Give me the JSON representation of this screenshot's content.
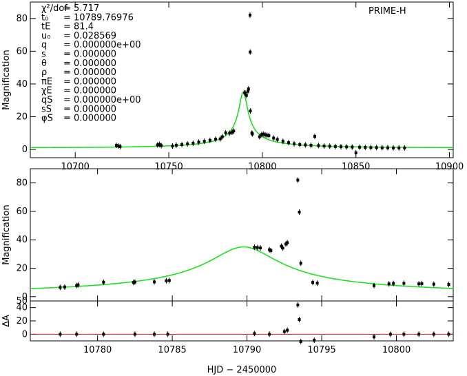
{
  "chart_data": [
    {
      "id": "top",
      "type": "scatter",
      "title": "PRIME-H",
      "xlabel": "",
      "ylabel": "Magnification",
      "xlim": [
        10676,
        10902
      ],
      "ylim": [
        -5,
        90
      ],
      "xticks": [
        10700,
        10750,
        10800,
        10850,
        10900
      ],
      "yticks": [
        0,
        20,
        40,
        60,
        80
      ],
      "grid": false,
      "fit_model": {
        "t0": 10789.76976,
        "tE": 81.4,
        "u0": 0.028569,
        "color": "#22dd22"
      },
      "params": [
        {
          "label": "χ²/dof",
          "value": "= 5.717"
        },
        {
          "label": "t₀",
          "value": "= 10789.76976"
        },
        {
          "label": "tE",
          "value": "= 81.4"
        },
        {
          "label": "u₀",
          "value": "= 0.028569"
        },
        {
          "label": "q",
          "value": "= 0.000000e+00"
        },
        {
          "label": "s",
          "value": "= 0.000000"
        },
        {
          "label": "θ",
          "value": "= 0.000000"
        },
        {
          "label": "ρ",
          "value": "= 0.000000"
        },
        {
          "label": "πE",
          "value": "= 0.000000"
        },
        {
          "label": "χE",
          "value": "= 0.000000"
        },
        {
          "label": "qS",
          "value": "= 0.000000e+00"
        },
        {
          "label": "sS",
          "value": "= 0.000000"
        },
        {
          "label": "φS",
          "value": "= 0.000000"
        }
      ],
      "points": [
        [
          10722,
          2.5
        ],
        [
          10723,
          2.2
        ],
        [
          10724,
          1.8
        ],
        [
          10744,
          2.8
        ],
        [
          10745,
          3.1
        ],
        [
          10746,
          2.4
        ],
        [
          10752,
          2.1
        ],
        [
          10754,
          2.6
        ],
        [
          10757,
          3.0
        ],
        [
          10760,
          3.4
        ],
        [
          10763,
          3.8
        ],
        [
          10766,
          4.5
        ],
        [
          10769,
          5.0
        ],
        [
          10772,
          5.6
        ],
        [
          10775,
          6.3
        ],
        [
          10777.5,
          6.5
        ],
        [
          10778.6,
          7.8
        ],
        [
          10780.4,
          10.2
        ],
        [
          10782.5,
          10.0
        ],
        [
          10783.8,
          10.5
        ],
        [
          10784.7,
          11.3
        ],
        [
          10790.5,
          34.7
        ],
        [
          10790.8,
          34.5
        ],
        [
          10791.5,
          33.0
        ],
        [
          10792.3,
          35.5
        ],
        [
          10792.6,
          37.0
        ],
        [
          10793.4,
          82.0
        ],
        [
          10793.5,
          59.5
        ],
        [
          10793.6,
          23.5
        ],
        [
          10794.4,
          10.0
        ],
        [
          10794.7,
          9.5
        ],
        [
          10798.5,
          7.8
        ],
        [
          10799.6,
          9.1
        ],
        [
          10800.5,
          9.4
        ],
        [
          10801.5,
          9.0
        ],
        [
          10802.5,
          8.7
        ],
        [
          10803.5,
          8.5
        ],
        [
          10806,
          7.0
        ],
        [
          10808,
          6.1
        ],
        [
          10811,
          5.0
        ],
        [
          10814,
          4.2
        ],
        [
          10817,
          3.5
        ],
        [
          10820,
          3.0
        ],
        [
          10823,
          2.8
        ],
        [
          10826,
          2.6
        ],
        [
          10828,
          8.0
        ],
        [
          10830,
          2.4
        ],
        [
          10833,
          2.1
        ],
        [
          10836,
          2.0
        ],
        [
          10839,
          1.8
        ],
        [
          10842,
          1.7
        ],
        [
          10845,
          1.6
        ],
        [
          10848,
          1.5
        ],
        [
          10850,
          -2.0
        ],
        [
          10852,
          1.4
        ],
        [
          10855,
          1.3
        ],
        [
          10858,
          1.2
        ],
        [
          10861,
          1.2
        ],
        [
          10864,
          1.1
        ],
        [
          10867,
          1.1
        ],
        [
          10870,
          1.0
        ],
        [
          10873,
          1.0
        ],
        [
          10876,
          1.0
        ]
      ]
    },
    {
      "id": "middle",
      "type": "scatter",
      "xlabel": "",
      "ylabel": "Magnification",
      "xlim": [
        10775.5,
        10803.8
      ],
      "ylim": [
        -3,
        90
      ],
      "xticks": [
        10780,
        10785,
        10790,
        10795,
        10800
      ],
      "yticks": [
        0,
        20,
        40,
        60,
        80
      ],
      "grid": false,
      "points": [
        [
          10777.5,
          6.5
        ],
        [
          10777.8,
          6.8
        ],
        [
          10778.6,
          7.8
        ],
        [
          10778.7,
          8.3
        ],
        [
          10780.4,
          10.2
        ],
        [
          10782.4,
          10.0
        ],
        [
          10782.5,
          10.3
        ],
        [
          10783.8,
          10.4
        ],
        [
          10784.6,
          11.2
        ],
        [
          10784.8,
          11.4
        ],
        [
          10790.5,
          34.8
        ],
        [
          10790.7,
          34.5
        ],
        [
          10790.9,
          34.3
        ],
        [
          10791.5,
          33.0
        ],
        [
          10791.6,
          32.4
        ],
        [
          10792.3,
          35.5
        ],
        [
          10792.4,
          34.2
        ],
        [
          10792.6,
          37.0
        ],
        [
          10792.7,
          38.0
        ],
        [
          10793.4,
          82.0
        ],
        [
          10793.5,
          59.5
        ],
        [
          10793.6,
          23.5
        ],
        [
          10794.4,
          10.0
        ],
        [
          10794.7,
          9.5
        ],
        [
          10798.5,
          7.8
        ],
        [
          10799.5,
          9.0
        ],
        [
          10799.8,
          9.3
        ],
        [
          10800.5,
          9.4
        ],
        [
          10801.5,
          9.0
        ],
        [
          10801.7,
          9.2
        ],
        [
          10802.5,
          8.8
        ],
        [
          10803.5,
          8.6
        ]
      ]
    },
    {
      "id": "bottom",
      "type": "scatter",
      "xlabel": "HJD − 2450000",
      "ylabel": "ΔA",
      "xlim": [
        10775.5,
        10803.8
      ],
      "ylim": [
        -10,
        50
      ],
      "xticks": [
        10780,
        10785,
        10790,
        10795,
        10800
      ],
      "yticks": [
        0,
        20,
        40,
        50
      ],
      "yticklabels": [
        "0",
        "20",
        "40",
        "50"
      ],
      "residual_line_color": "#cc2222",
      "points": [
        [
          10777.5,
          0
        ],
        [
          10778.6,
          0
        ],
        [
          10780.4,
          0
        ],
        [
          10782.5,
          0
        ],
        [
          10783.8,
          0
        ],
        [
          10784.7,
          0
        ],
        [
          10790.5,
          1
        ],
        [
          10791.5,
          0
        ],
        [
          10792.5,
          4
        ],
        [
          10792.7,
          6
        ],
        [
          10793.4,
          44
        ],
        [
          10793.5,
          22
        ],
        [
          10793.6,
          -11
        ],
        [
          10794.5,
          -9
        ],
        [
          10798.5,
          -4
        ],
        [
          10799.6,
          0
        ],
        [
          10800.5,
          0
        ],
        [
          10801.5,
          0
        ],
        [
          10802.5,
          0
        ],
        [
          10803.5,
          0
        ]
      ]
    }
  ]
}
